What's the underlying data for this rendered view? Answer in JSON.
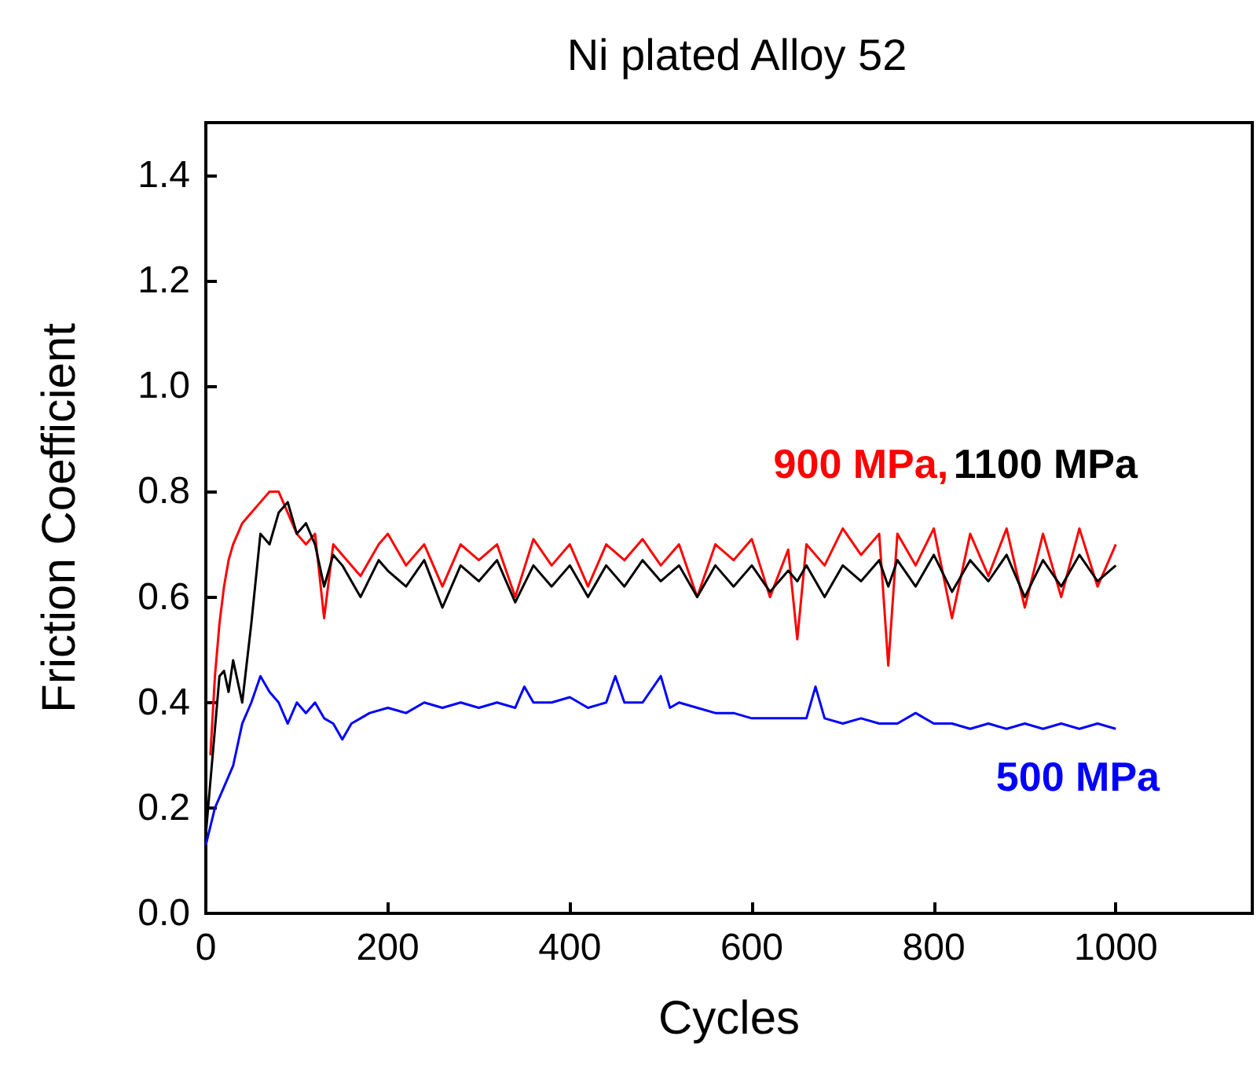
{
  "chart_data": {
    "type": "line",
    "title": "Ni plated Alloy 52",
    "xlabel": "Cycles",
    "ylabel": "Friction Coefficient",
    "xlim": [
      0,
      1150
    ],
    "xticks": [
      0,
      200,
      400,
      600,
      800,
      1000
    ],
    "ylim": [
      0,
      1.5
    ],
    "yticks": [
      {
        "value": 0,
        "label": "0.0"
      },
      0.2,
      0.4,
      0.6,
      0.8,
      {
        "value": 1,
        "label": "1.0"
      },
      1.2,
      1.4
    ],
    "grid": false,
    "legend": false,
    "marker": "none",
    "line_style": "solid",
    "series": [
      {
        "name": "900 MPa,",
        "color": "#ff0000",
        "x": [
          5,
          10,
          15,
          20,
          25,
          30,
          40,
          50,
          60,
          70,
          80,
          90,
          100,
          110,
          120,
          130,
          140,
          150,
          170,
          190,
          200,
          220,
          240,
          260,
          280,
          300,
          320,
          340,
          360,
          380,
          400,
          420,
          440,
          460,
          480,
          500,
          520,
          540,
          560,
          580,
          600,
          620,
          640,
          650,
          660,
          680,
          700,
          720,
          740,
          750,
          760,
          780,
          800,
          820,
          840,
          860,
          880,
          900,
          920,
          940,
          960,
          980,
          1000
        ],
        "values": [
          0.3,
          0.45,
          0.55,
          0.62,
          0.67,
          0.7,
          0.74,
          0.76,
          0.78,
          0.8,
          0.8,
          0.76,
          0.72,
          0.7,
          0.72,
          0.56,
          0.7,
          0.68,
          0.64,
          0.7,
          0.72,
          0.66,
          0.7,
          0.62,
          0.7,
          0.67,
          0.7,
          0.6,
          0.71,
          0.66,
          0.7,
          0.62,
          0.7,
          0.67,
          0.71,
          0.66,
          0.7,
          0.6,
          0.7,
          0.67,
          0.71,
          0.6,
          0.69,
          0.52,
          0.7,
          0.66,
          0.73,
          0.68,
          0.72,
          0.47,
          0.72,
          0.66,
          0.73,
          0.56,
          0.72,
          0.64,
          0.73,
          0.58,
          0.72,
          0.6,
          0.73,
          0.62,
          0.7
        ]
      },
      {
        "name": "1100 MPa",
        "color": "#000000",
        "x": [
          0,
          5,
          10,
          15,
          20,
          25,
          30,
          40,
          50,
          60,
          70,
          80,
          90,
          100,
          110,
          120,
          130,
          140,
          150,
          170,
          190,
          200,
          220,
          240,
          260,
          280,
          300,
          320,
          340,
          360,
          380,
          400,
          420,
          440,
          460,
          480,
          500,
          520,
          540,
          560,
          580,
          600,
          620,
          640,
          650,
          660,
          680,
          700,
          720,
          740,
          750,
          760,
          780,
          800,
          820,
          840,
          860,
          880,
          900,
          920,
          940,
          960,
          980,
          1000
        ],
        "values": [
          0.15,
          0.25,
          0.35,
          0.45,
          0.46,
          0.42,
          0.48,
          0.4,
          0.55,
          0.72,
          0.7,
          0.76,
          0.78,
          0.72,
          0.74,
          0.7,
          0.62,
          0.68,
          0.66,
          0.6,
          0.67,
          0.65,
          0.62,
          0.67,
          0.58,
          0.66,
          0.63,
          0.67,
          0.59,
          0.66,
          0.62,
          0.66,
          0.6,
          0.66,
          0.62,
          0.67,
          0.63,
          0.66,
          0.6,
          0.66,
          0.62,
          0.66,
          0.61,
          0.65,
          0.63,
          0.66,
          0.6,
          0.66,
          0.63,
          0.67,
          0.62,
          0.67,
          0.62,
          0.68,
          0.61,
          0.67,
          0.63,
          0.68,
          0.6,
          0.67,
          0.62,
          0.68,
          0.63,
          0.66
        ]
      },
      {
        "name": "500 MPa",
        "color": "#0000ff",
        "x": [
          0,
          10,
          20,
          30,
          40,
          50,
          60,
          70,
          80,
          90,
          100,
          110,
          120,
          130,
          140,
          150,
          160,
          170,
          180,
          200,
          220,
          240,
          260,
          280,
          300,
          320,
          340,
          350,
          360,
          380,
          400,
          420,
          440,
          450,
          460,
          480,
          500,
          510,
          520,
          540,
          560,
          580,
          600,
          620,
          640,
          660,
          670,
          680,
          700,
          720,
          740,
          760,
          780,
          800,
          820,
          840,
          860,
          880,
          900,
          920,
          940,
          960,
          980,
          1000
        ],
        "values": [
          0.13,
          0.2,
          0.24,
          0.28,
          0.36,
          0.4,
          0.45,
          0.42,
          0.4,
          0.36,
          0.4,
          0.38,
          0.4,
          0.37,
          0.36,
          0.33,
          0.36,
          0.37,
          0.38,
          0.39,
          0.38,
          0.4,
          0.39,
          0.4,
          0.39,
          0.4,
          0.39,
          0.43,
          0.4,
          0.4,
          0.41,
          0.39,
          0.4,
          0.45,
          0.4,
          0.4,
          0.45,
          0.39,
          0.4,
          0.39,
          0.38,
          0.38,
          0.37,
          0.37,
          0.37,
          0.37,
          0.43,
          0.37,
          0.36,
          0.37,
          0.36,
          0.36,
          0.38,
          0.36,
          0.36,
          0.35,
          0.36,
          0.35,
          0.36,
          0.35,
          0.36,
          0.35,
          0.36,
          0.35
        ]
      }
    ]
  }
}
